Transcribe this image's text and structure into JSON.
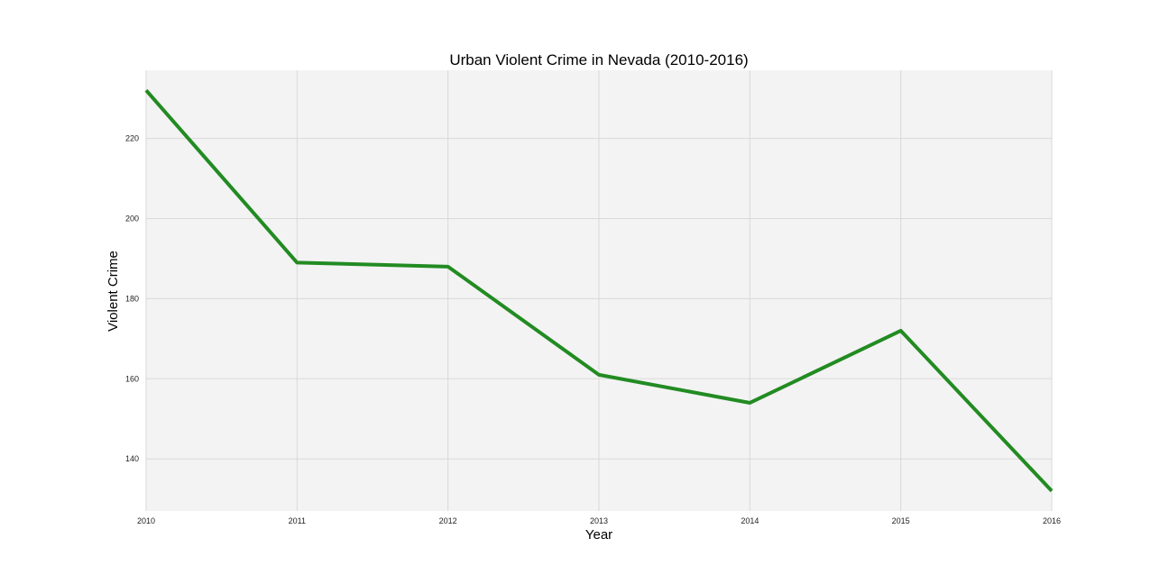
{
  "chart_data": {
    "type": "line",
    "title": "Urban Violent Crime in Nevada (2010-2016)",
    "xlabel": "Year",
    "ylabel": "Violent Crime",
    "x": [
      2010,
      2011,
      2012,
      2013,
      2014,
      2015,
      2016
    ],
    "series": [
      {
        "values": [
          232,
          189,
          188,
          161,
          154,
          172,
          132
        ],
        "color": "#228b22"
      }
    ],
    "xlim": [
      2010,
      2016
    ],
    "ylim": [
      127,
      237
    ],
    "xticks": [
      "2010",
      "2011",
      "2012",
      "2013",
      "2014",
      "2015",
      "2016"
    ],
    "yticks": [
      140,
      160,
      180,
      200,
      220
    ],
    "grid": true,
    "legend": "none",
    "colors": {
      "plot_background": "#f3f3f3",
      "grid": "#d9d9d9"
    }
  }
}
